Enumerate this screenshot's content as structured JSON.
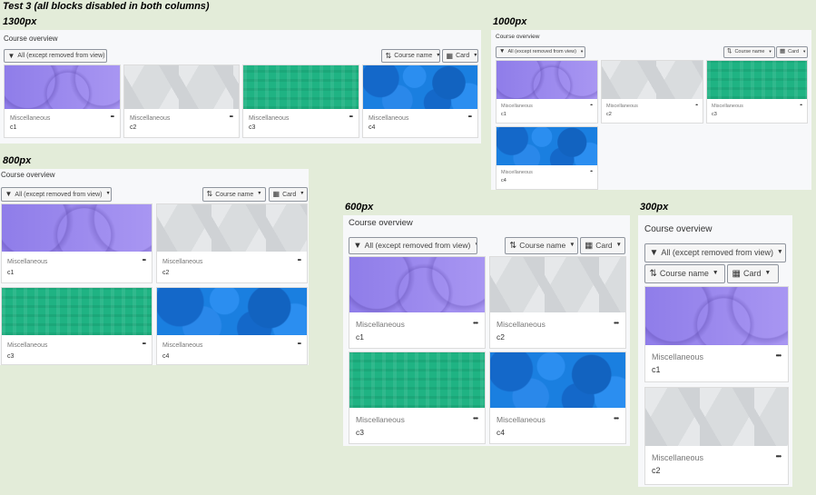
{
  "page_title": "Test 3 (all blocks disabled in both columns)",
  "block_title": "Course overview",
  "filter_label": "All (except removed from view)",
  "sort_label": "Course name",
  "view_label": "Card",
  "card_category": "Miscellaneous",
  "card_menu": "•••",
  "icons": {
    "filter": "funnel-icon",
    "sort": "sort-icon",
    "view": "grid-icon",
    "caret": "caret-down-icon"
  },
  "courses": [
    {
      "name": "c1",
      "image": "purple"
    },
    {
      "name": "c2",
      "image": "grey"
    },
    {
      "name": "c3",
      "image": "green"
    },
    {
      "name": "c4",
      "image": "blue"
    }
  ],
  "sections": [
    {
      "label": "1300px"
    },
    {
      "label": "1000px"
    },
    {
      "label": "800px"
    },
    {
      "label": "600px"
    },
    {
      "label": "300px"
    }
  ]
}
